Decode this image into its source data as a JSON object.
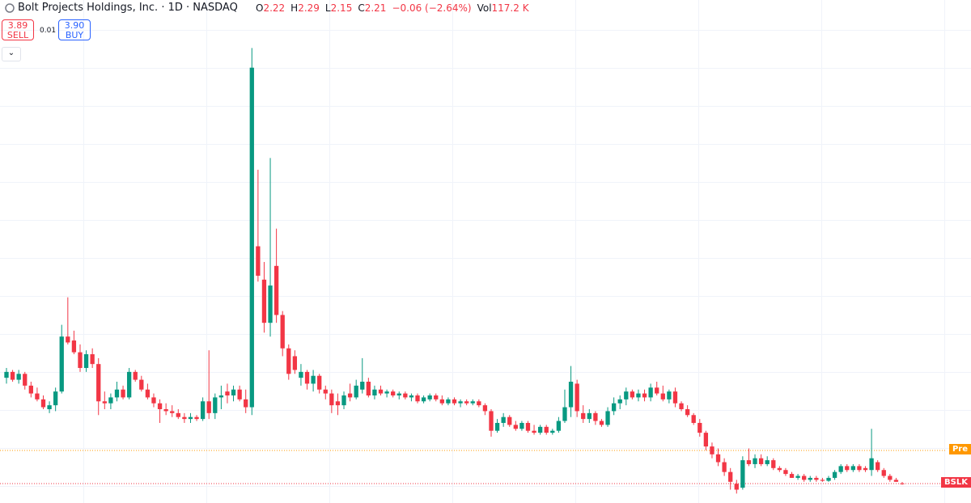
{
  "header": {
    "title": "Bolt Projects Holdings, Inc. · 1D · NASDAQ",
    "ohlc_labels": [
      "O",
      "H",
      "L",
      "C"
    ],
    "change": "−0.06 (−2.64%)",
    "vol_label": "Vol",
    "volume": "117.2 K"
  },
  "trade": {
    "sell_price": "3.89",
    "sell_label": "SELL",
    "spread": "0.01",
    "buy_price": "3.90",
    "buy_label": "BUY"
  },
  "tags": {
    "pre": "Pre",
    "symbol": "BSLK"
  },
  "chart_data": {
    "type": "candlestick",
    "up_color": "#089981",
    "down_color": "#f23645",
    "ylim": [
      1.22,
      25.2
    ],
    "candles": [
      [
        7.6,
        8.1,
        7.3,
        7.9
      ],
      [
        7.9,
        8.0,
        7.4,
        7.5
      ],
      [
        7.5,
        8.0,
        7.3,
        7.8
      ],
      [
        7.8,
        7.9,
        7.0,
        7.2
      ],
      [
        7.2,
        7.4,
        6.6,
        6.8
      ],
      [
        6.8,
        7.1,
        6.4,
        6.5
      ],
      [
        6.5,
        6.7,
        6.0,
        6.1
      ],
      [
        6.0,
        6.4,
        5.8,
        6.2
      ],
      [
        6.2,
        7.1,
        5.9,
        6.9
      ],
      [
        6.9,
        10.3,
        6.8,
        9.7
      ],
      [
        9.7,
        11.7,
        9.3,
        9.4
      ],
      [
        9.5,
        10.0,
        8.8,
        8.9
      ],
      [
        8.9,
        9.3,
        7.9,
        8.1
      ],
      [
        8.1,
        9.0,
        7.9,
        8.8
      ],
      [
        8.8,
        9.1,
        8.1,
        8.3
      ],
      [
        8.3,
        8.6,
        5.7,
        6.4
      ],
      [
        6.4,
        6.9,
        6.0,
        6.3
      ],
      [
        6.3,
        6.8,
        6.0,
        6.6
      ],
      [
        6.6,
        7.4,
        6.4,
        7.0
      ],
      [
        7.0,
        7.2,
        6.5,
        6.6
      ],
      [
        6.6,
        8.1,
        6.5,
        7.9
      ],
      [
        7.9,
        8.0,
        7.4,
        7.5
      ],
      [
        7.5,
        7.7,
        6.9,
        7.0
      ],
      [
        7.0,
        7.3,
        6.5,
        6.6
      ],
      [
        6.6,
        6.8,
        6.1,
        6.3
      ],
      [
        6.3,
        6.5,
        5.3,
        6.0
      ],
      [
        6.0,
        6.3,
        5.7,
        5.9
      ],
      [
        5.9,
        6.2,
        5.6,
        5.8
      ],
      [
        5.8,
        6.0,
        5.5,
        5.6
      ],
      [
        5.6,
        5.8,
        5.3,
        5.5
      ],
      [
        5.5,
        5.8,
        5.3,
        5.6
      ],
      [
        5.6,
        5.7,
        5.4,
        5.5
      ],
      [
        5.5,
        6.6,
        5.4,
        6.4
      ],
      [
        6.4,
        9.0,
        5.5,
        5.8
      ],
      [
        5.8,
        6.8,
        5.5,
        6.6
      ],
      [
        6.6,
        7.2,
        6.0,
        6.7
      ],
      [
        6.9,
        7.3,
        6.3,
        6.7
      ],
      [
        6.7,
        7.2,
        6.4,
        7.0
      ],
      [
        7.0,
        7.2,
        6.4,
        6.5
      ],
      [
        6.5,
        7.0,
        5.8,
        6.1
      ],
      [
        6.1,
        24.4,
        5.7,
        23.4
      ],
      [
        14.3,
        18.2,
        12.5,
        12.8
      ],
      [
        12.6,
        13.5,
        9.9,
        10.4
      ],
      [
        10.4,
        18.8,
        9.7,
        12.3
      ],
      [
        13.3,
        15.2,
        10.4,
        10.8
      ],
      [
        10.8,
        11.0,
        8.7,
        9.1
      ],
      [
        9.1,
        9.3,
        7.5,
        7.8
      ],
      [
        8.7,
        9.0,
        7.8,
        8.0
      ],
      [
        7.6,
        8.3,
        7.2,
        7.9
      ],
      [
        7.9,
        8.0,
        7.0,
        7.3
      ],
      [
        7.3,
        8.0,
        6.9,
        7.7
      ],
      [
        7.7,
        7.8,
        6.8,
        7.0
      ],
      [
        7.0,
        7.2,
        6.5,
        6.8
      ],
      [
        6.8,
        7.0,
        5.8,
        6.2
      ],
      [
        6.4,
        6.8,
        5.7,
        6.2
      ],
      [
        6.2,
        6.9,
        6.0,
        6.7
      ],
      [
        6.8,
        7.3,
        6.4,
        6.6
      ],
      [
        6.6,
        7.5,
        6.5,
        7.2
      ],
      [
        7.0,
        8.6,
        6.8,
        7.4
      ],
      [
        7.4,
        7.6,
        6.6,
        6.7
      ],
      [
        6.7,
        7.2,
        6.5,
        7.0
      ],
      [
        7.0,
        7.2,
        6.7,
        6.8
      ],
      [
        6.8,
        7.0,
        6.6,
        6.9
      ],
      [
        6.9,
        7.0,
        6.6,
        6.7
      ],
      [
        6.7,
        6.9,
        6.5,
        6.8
      ],
      [
        6.8,
        6.9,
        6.5,
        6.6
      ],
      [
        6.6,
        6.8,
        6.4,
        6.7
      ],
      [
        6.7,
        6.8,
        6.3,
        6.4
      ],
      [
        6.4,
        6.7,
        6.3,
        6.6
      ],
      [
        6.5,
        6.8,
        6.4,
        6.7
      ],
      [
        6.7,
        6.8,
        6.4,
        6.5
      ],
      [
        6.5,
        6.7,
        6.2,
        6.3
      ],
      [
        6.3,
        6.6,
        6.2,
        6.5
      ],
      [
        6.5,
        6.6,
        6.2,
        6.3
      ],
      [
        6.3,
        6.5,
        6.1,
        6.4
      ],
      [
        6.4,
        6.5,
        6.2,
        6.3
      ],
      [
        6.3,
        6.5,
        6.2,
        6.4
      ],
      [
        6.4,
        6.5,
        6.1,
        6.2
      ],
      [
        6.2,
        6.3,
        5.7,
        5.9
      ],
      [
        5.9,
        6.0,
        4.6,
        4.9
      ],
      [
        4.9,
        5.5,
        4.8,
        5.3
      ],
      [
        5.3,
        5.8,
        5.1,
        5.6
      ],
      [
        5.6,
        5.7,
        5.1,
        5.2
      ],
      [
        5.2,
        5.4,
        4.9,
        5.0
      ],
      [
        5.0,
        5.4,
        4.9,
        5.3
      ],
      [
        5.3,
        5.4,
        4.8,
        4.9
      ],
      [
        4.9,
        5.2,
        4.7,
        4.8
      ],
      [
        4.8,
        5.2,
        4.7,
        5.1
      ],
      [
        5.1,
        5.2,
        4.7,
        4.8
      ],
      [
        4.8,
        5.0,
        4.7,
        4.9
      ],
      [
        4.9,
        5.6,
        4.8,
        5.4
      ],
      [
        5.4,
        7.0,
        5.3,
        6.1
      ],
      [
        6.1,
        8.2,
        5.6,
        7.4
      ],
      [
        7.3,
        7.5,
        5.6,
        5.9
      ],
      [
        5.8,
        6.2,
        5.3,
        5.5
      ],
      [
        5.5,
        6.0,
        5.3,
        5.8
      ],
      [
        5.8,
        5.9,
        5.2,
        5.4
      ],
      [
        5.4,
        5.5,
        5.1,
        5.2
      ],
      [
        5.2,
        6.1,
        5.1,
        5.9
      ],
      [
        5.9,
        6.6,
        5.7,
        6.3
      ],
      [
        6.3,
        6.7,
        6.0,
        6.5
      ],
      [
        6.5,
        7.1,
        6.2,
        6.9
      ],
      [
        6.9,
        7.0,
        6.5,
        6.6
      ],
      [
        6.6,
        7.0,
        6.4,
        6.8
      ],
      [
        6.8,
        7.0,
        6.4,
        6.6
      ],
      [
        6.6,
        7.3,
        6.4,
        7.1
      ],
      [
        7.1,
        7.4,
        6.7,
        6.8
      ],
      [
        6.8,
        7.2,
        6.4,
        6.5
      ],
      [
        6.5,
        7.0,
        6.3,
        6.9
      ],
      [
        6.9,
        7.1,
        6.1,
        6.3
      ],
      [
        6.3,
        6.4,
        5.9,
        6.0
      ],
      [
        6.0,
        6.2,
        5.6,
        5.7
      ],
      [
        5.7,
        5.8,
        5.2,
        5.3
      ],
      [
        5.3,
        5.5,
        4.6,
        4.8
      ],
      [
        4.8,
        4.9,
        3.9,
        4.1
      ],
      [
        4.1,
        4.3,
        3.5,
        3.7
      ],
      [
        3.7,
        4.0,
        3.1,
        3.3
      ],
      [
        3.3,
        3.5,
        2.6,
        2.8
      ],
      [
        2.8,
        3.0,
        1.9,
        2.3
      ],
      [
        2.2,
        2.4,
        1.7,
        1.9
      ],
      [
        2.0,
        3.6,
        1.9,
        3.4
      ],
      [
        3.4,
        4.0,
        3.1,
        3.2
      ],
      [
        3.2,
        3.7,
        3.0,
        3.5
      ],
      [
        3.5,
        3.7,
        3.1,
        3.2
      ],
      [
        3.2,
        3.6,
        3.1,
        3.4
      ],
      [
        3.4,
        3.5,
        2.9,
        3.0
      ],
      [
        3.0,
        3.1,
        2.8,
        2.9
      ],
      [
        2.9,
        3.0,
        2.6,
        2.7
      ],
      [
        2.7,
        2.8,
        2.5,
        2.5
      ],
      [
        2.5,
        2.7,
        2.4,
        2.6
      ],
      [
        2.6,
        2.7,
        2.3,
        2.4
      ],
      [
        2.4,
        2.6,
        2.3,
        2.5
      ],
      [
        2.5,
        2.6,
        2.3,
        2.4
      ],
      [
        2.4,
        2.5,
        2.3,
        2.35
      ],
      [
        2.35,
        2.6,
        2.3,
        2.5
      ],
      [
        2.5,
        2.9,
        2.4,
        2.8
      ],
      [
        2.8,
        3.2,
        2.7,
        3.1
      ],
      [
        3.1,
        3.2,
        2.8,
        2.9
      ],
      [
        2.9,
        3.2,
        2.8,
        3.1
      ],
      [
        3.1,
        3.2,
        2.8,
        2.9
      ],
      [
        3.0,
        3.1,
        2.8,
        2.9
      ],
      [
        2.9,
        5.0,
        2.6,
        3.5
      ],
      [
        3.3,
        3.4,
        2.8,
        2.9
      ],
      [
        2.9,
        3.0,
        2.5,
        2.6
      ],
      [
        2.6,
        2.7,
        2.3,
        2.4
      ],
      [
        2.4,
        2.5,
        2.3,
        2.3
      ],
      [
        2.22,
        2.29,
        2.15,
        2.21
      ]
    ]
  }
}
